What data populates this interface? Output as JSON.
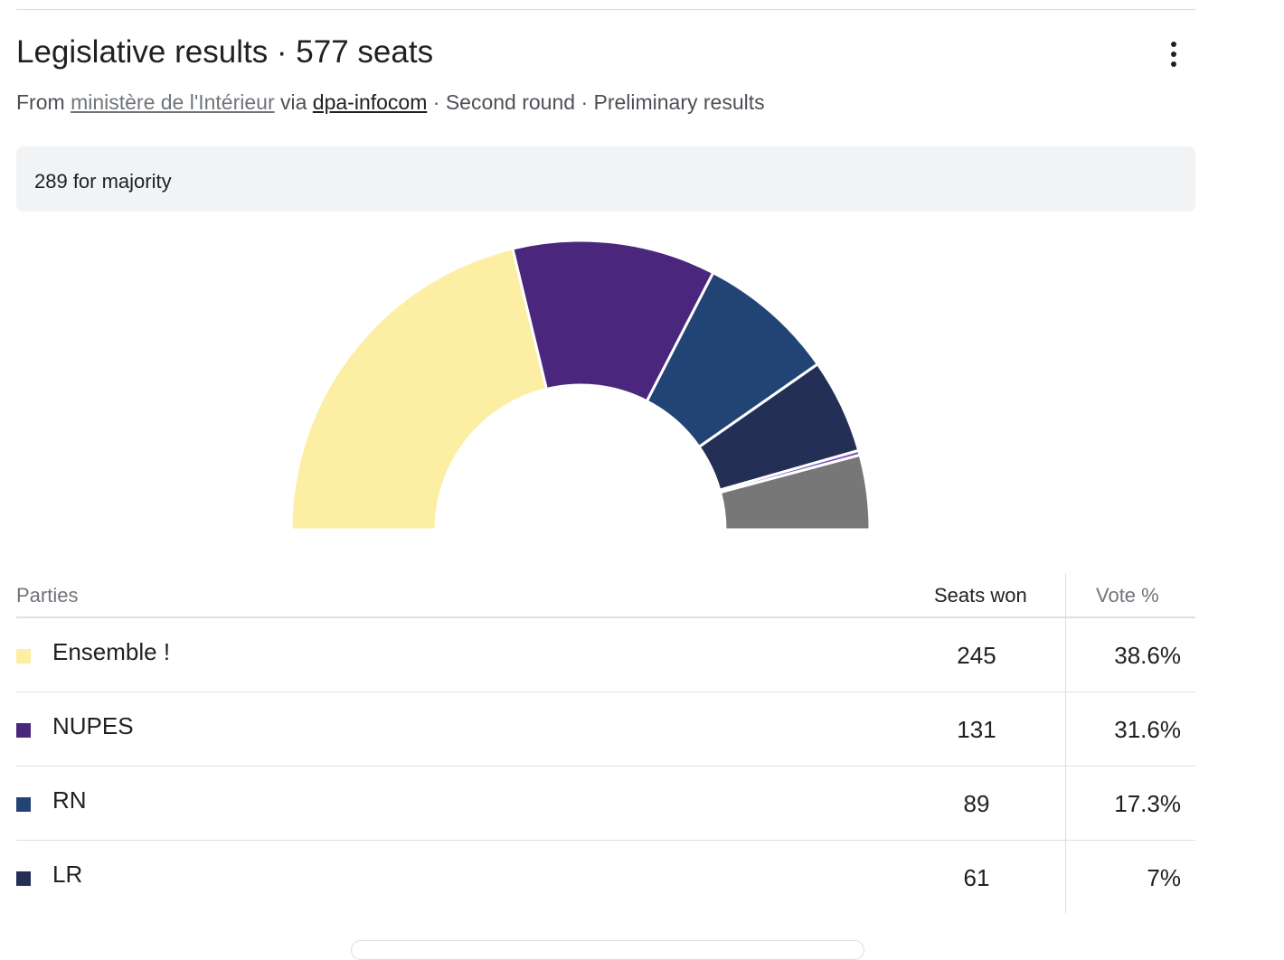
{
  "header": {
    "title": "Legislative results · 577 seats",
    "menu_icon": "more-vert-icon"
  },
  "subtitle": {
    "from": "From",
    "source": "ministère de l'Intérieur",
    "via": "via",
    "provider": "dpa-infocom",
    "round": "· Second round",
    "status": "· Preliminary results"
  },
  "majority": {
    "label": "289 for majority"
  },
  "chart_data": {
    "type": "pie",
    "total_seats": 577,
    "slices": [
      {
        "name": "Ensemble !",
        "value": 245,
        "color": "#fcefa4"
      },
      {
        "name": "NUPES",
        "value": 131,
        "color": "#4a277c"
      },
      {
        "name": "RN",
        "value": 89,
        "color": "#224474"
      },
      {
        "name": "LR",
        "value": 61,
        "color": "#232f54"
      },
      {
        "name": "",
        "value": 3,
        "color": "#7c52b8"
      },
      {
        "name": "",
        "value": 48,
        "color": "#777777"
      }
    ]
  },
  "table": {
    "headers": {
      "parties": "Parties",
      "seats": "Seats won",
      "vote": "Vote %"
    },
    "rows": [
      {
        "party": "Ensemble !",
        "seats": "245",
        "vote": "38.6%",
        "color": "#fcefa4"
      },
      {
        "party": "NUPES",
        "seats": "131",
        "vote": "31.6%",
        "color": "#4a277c"
      },
      {
        "party": "RN",
        "seats": "89",
        "vote": "17.3%",
        "color": "#224474"
      },
      {
        "party": "LR",
        "seats": "61",
        "vote": "7%",
        "color": "#232f54"
      }
    ]
  }
}
